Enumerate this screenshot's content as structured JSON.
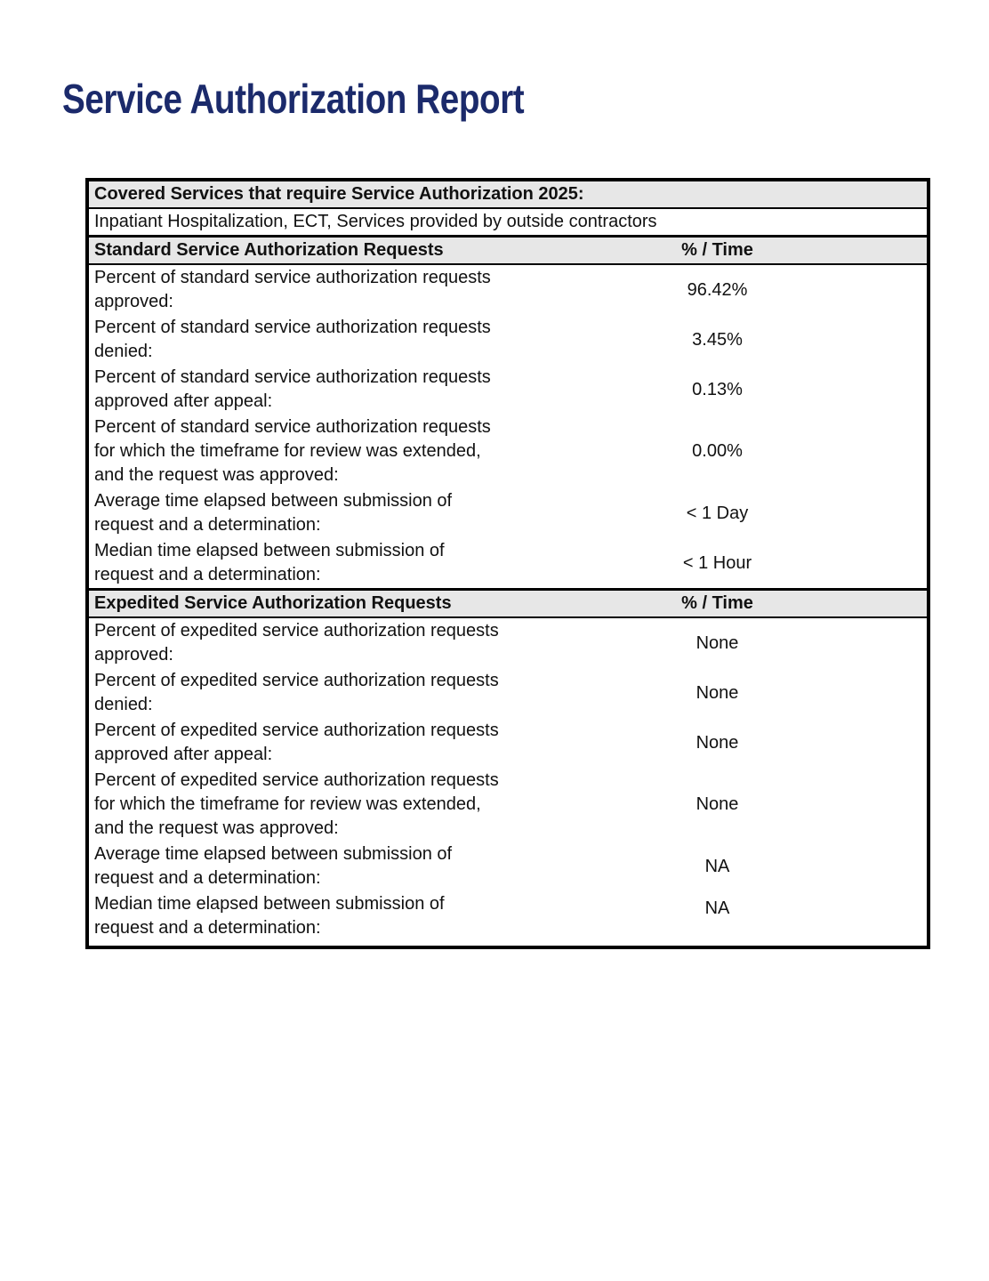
{
  "page_title": "Service Authorization Report",
  "colors": {
    "title_color": "#1b2a6b",
    "header_bg": "#e7e7e7",
    "border_color": "#000000"
  },
  "table": {
    "covered": {
      "header": "Covered Services that require Service Authorization 2025:",
      "value": "Inpatiant Hospitalization, ECT, Services provided by outside contractors"
    },
    "sections": [
      {
        "title": "Standard Service Authorization Requests",
        "col_header": "% / Time",
        "rows": [
          {
            "label": "Percent of standard service authorization requests approved:",
            "value": "96.42%"
          },
          {
            "label": "Percent of standard service authorization requests denied:",
            "value": "3.45%"
          },
          {
            "label": "Percent of standard service authorization requests approved after appeal:",
            "value": "0.13%"
          },
          {
            "label": "Percent of standard service authorization requests for which the timeframe for review was extended, and the request was approved:",
            "value": "0.00%"
          },
          {
            "label": "Average time elapsed between submission of request and a determination:",
            "value": "< 1 Day"
          },
          {
            "label": "Median time elapsed between submission of request and a determination:",
            "value": "< 1 Hour"
          }
        ]
      },
      {
        "title": "Expedited Service Authorization Requests",
        "col_header": "% / Time",
        "rows": [
          {
            "label": "Percent of expedited service authorization requests approved:",
            "value": "None"
          },
          {
            "label": "Percent of expedited service authorization requests denied:",
            "value": "None"
          },
          {
            "label": "Percent of expedited service authorization requests approved after appeal:",
            "value": "None"
          },
          {
            "label": "Percent of expedited service authorization requests for which the timeframe for review was extended, and the request was approved:",
            "value": "None"
          },
          {
            "label": "Average time elapsed between submission of request and a determination:",
            "value": "NA"
          },
          {
            "label": "Median time elapsed between submission of request and a determination:",
            "value": "NA"
          }
        ]
      }
    ]
  }
}
